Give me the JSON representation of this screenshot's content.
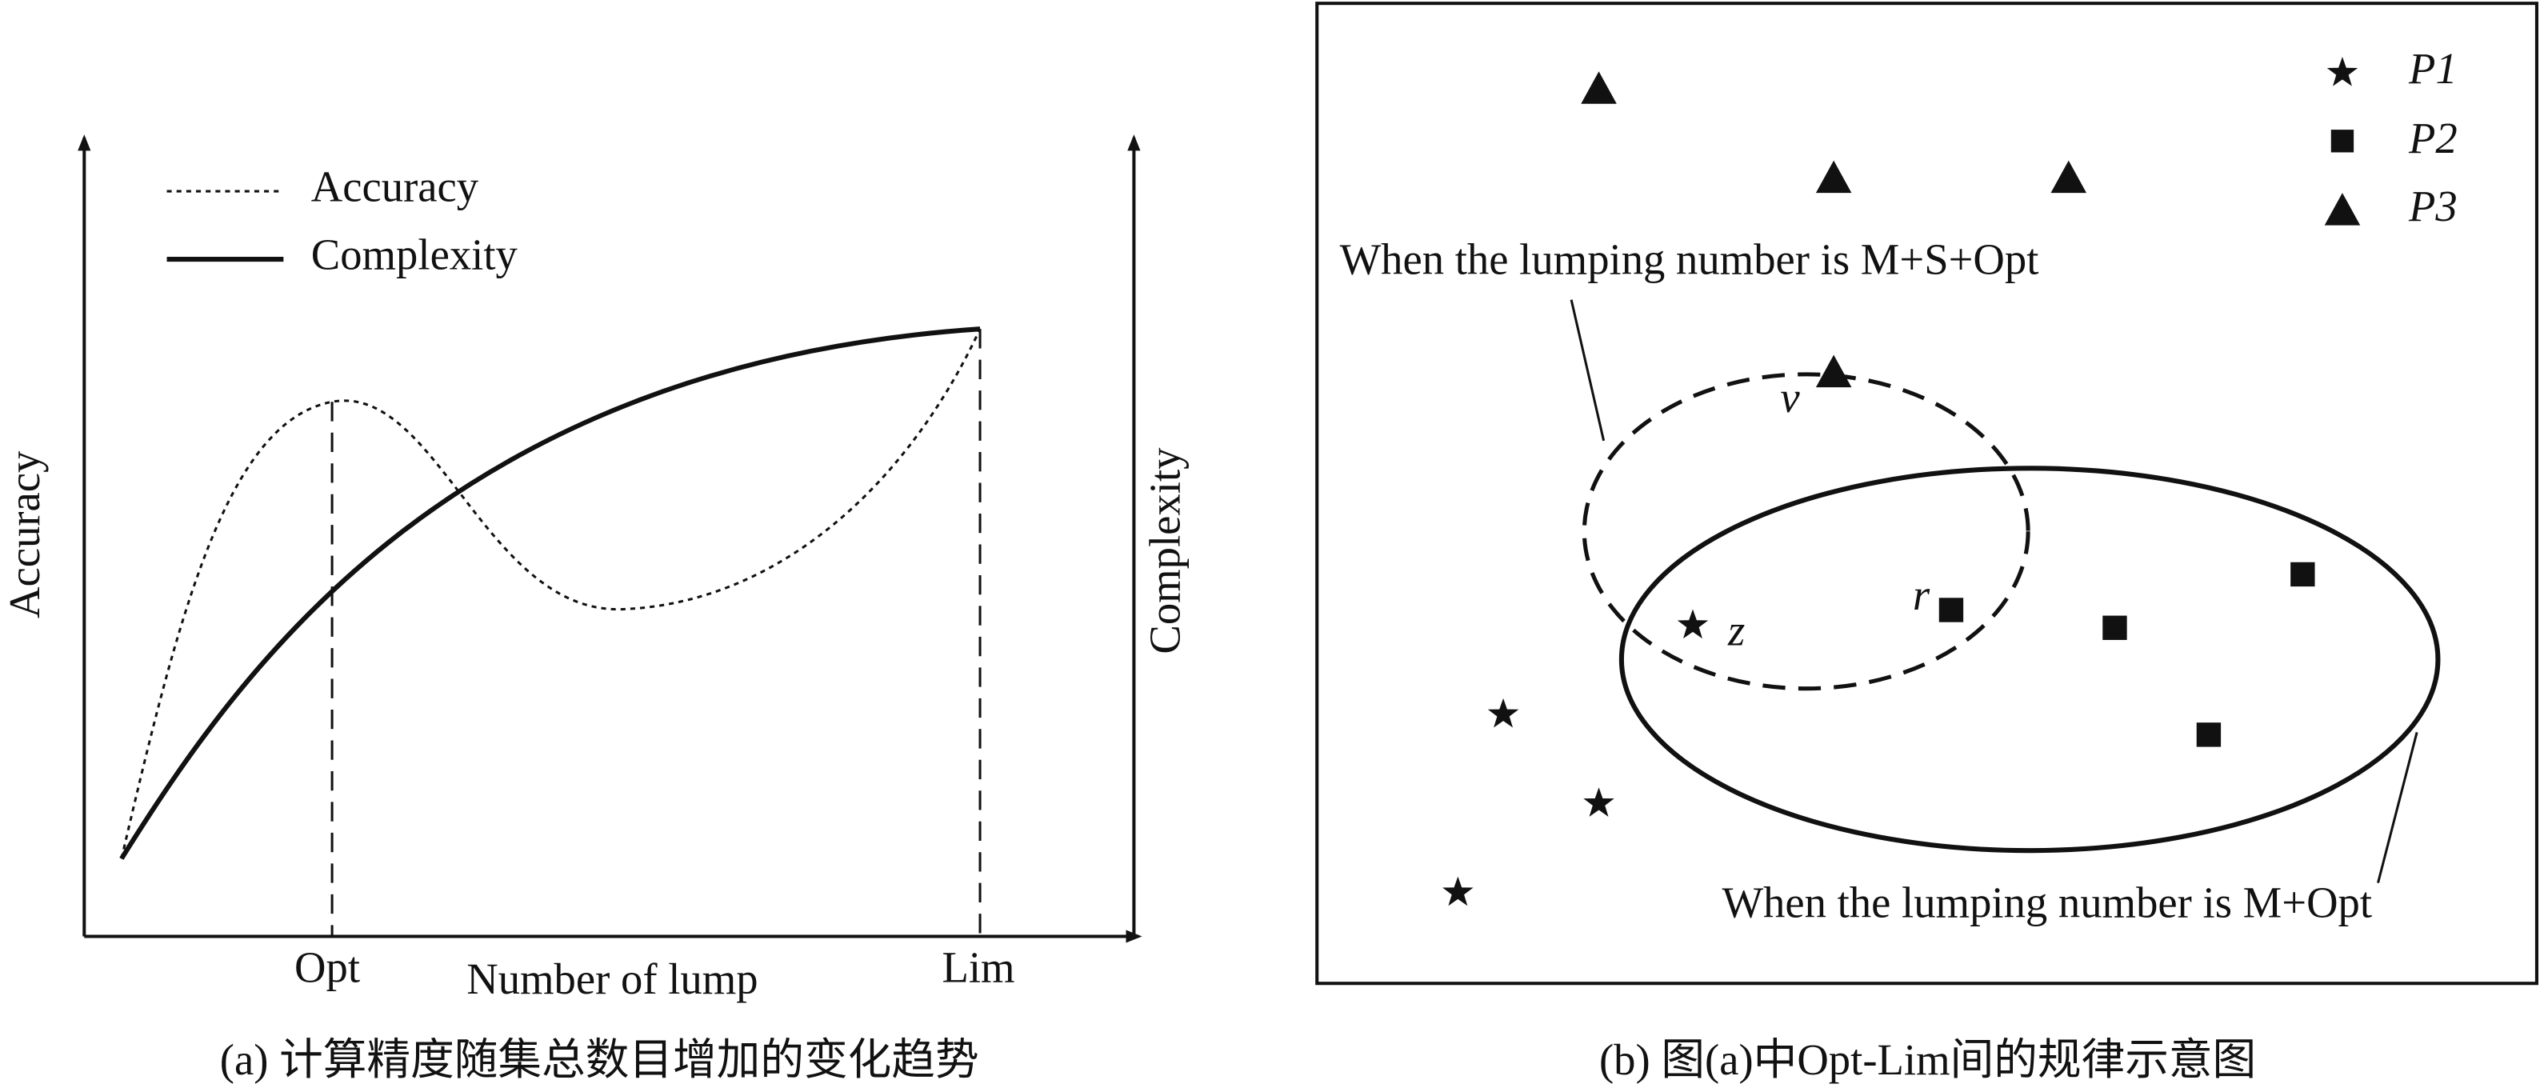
{
  "panel_a": {
    "legend": [
      "Accuracy",
      "Complexity"
    ],
    "y_label": "Accuracy",
    "y2_label": "Complexity",
    "x_label": "Number of lump",
    "x_marks": [
      "Opt",
      "Lim"
    ],
    "caption": "(a) 计算精度随集总数目增加的变化趋势"
  },
  "panel_b": {
    "legend": [
      "P1",
      "P2",
      "P3"
    ],
    "upper_label": "When the lumping number is M+S+Opt",
    "lower_label": "When the lumping number is M+Opt",
    "points": [
      "v",
      "r",
      "z"
    ],
    "caption": "(b) 图(a)中Opt-Lim间的规律示意图"
  }
}
